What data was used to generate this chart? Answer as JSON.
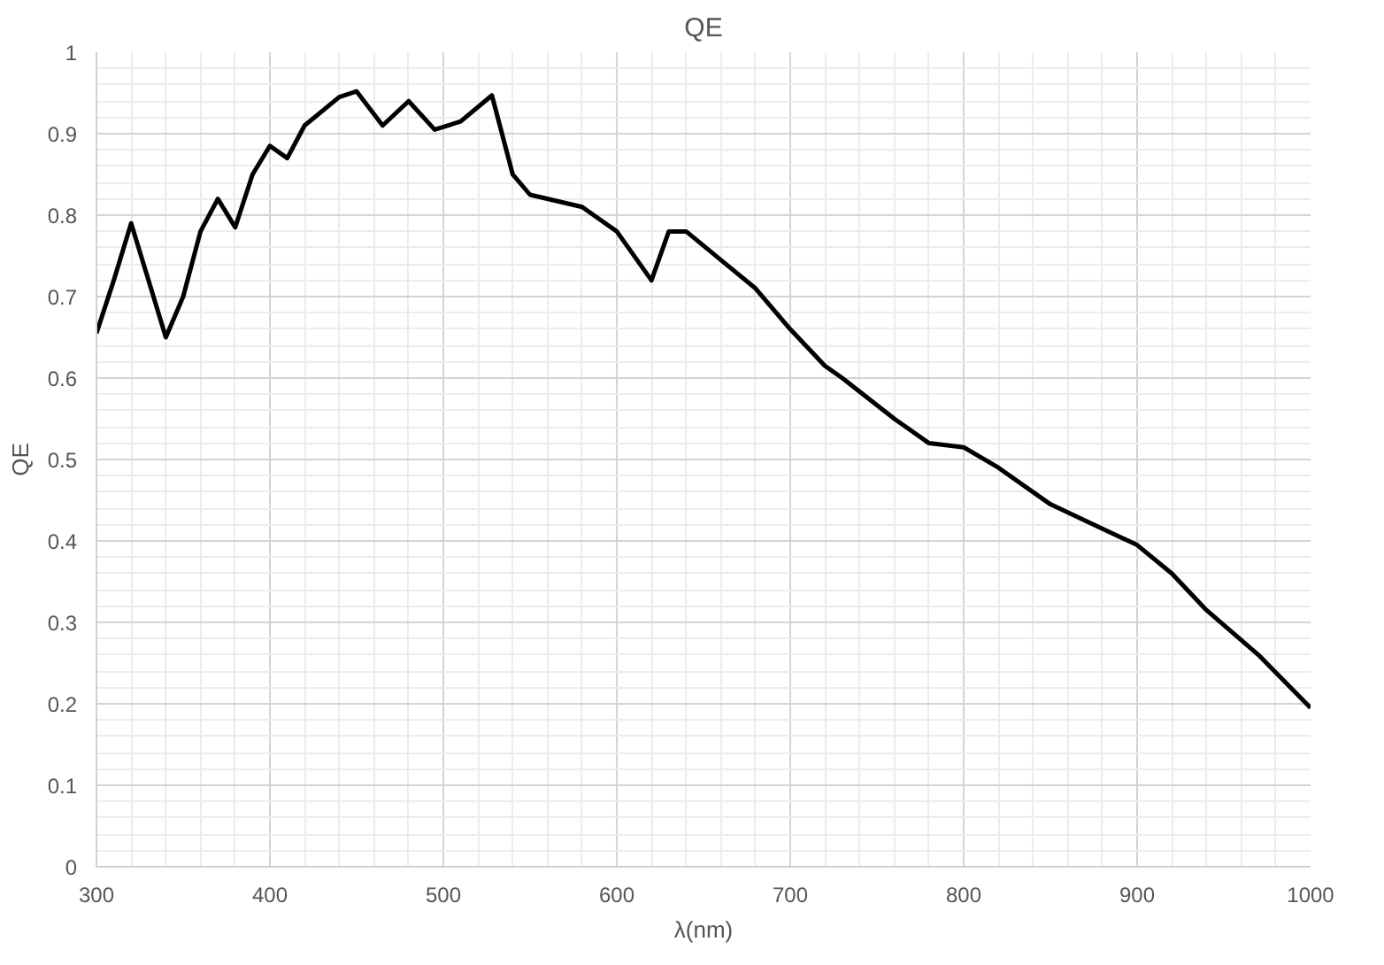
{
  "chart_data": {
    "type": "line",
    "title": "QE",
    "xlabel": "λ(nm)",
    "ylabel": "QE",
    "x": [
      300,
      310,
      320,
      330,
      340,
      350,
      360,
      370,
      380,
      390,
      400,
      410,
      420,
      440,
      450,
      465,
      480,
      495,
      510,
      528,
      540,
      550,
      580,
      600,
      620,
      630,
      640,
      660,
      680,
      700,
      720,
      730,
      760,
      780,
      800,
      820,
      850,
      880,
      900,
      920,
      940,
      970,
      1000
    ],
    "series": [
      {
        "color": "#000000",
        "values": [
          0.655,
          0.72,
          0.79,
          0.72,
          0.65,
          0.7,
          0.78,
          0.82,
          0.785,
          0.85,
          0.885,
          0.87,
          0.91,
          0.945,
          0.952,
          0.91,
          0.94,
          0.905,
          0.915,
          0.947,
          0.85,
          0.825,
          0.81,
          0.78,
          0.72,
          0.78,
          0.78,
          0.745,
          0.71,
          0.66,
          0.615,
          0.6,
          0.55,
          0.52,
          0.515,
          0.49,
          0.445,
          0.415,
          0.395,
          0.36,
          0.315,
          0.26,
          0.195
        ]
      }
    ],
    "xlim": [
      300,
      1000
    ],
    "ylim": [
      0,
      1
    ],
    "xticks": [
      300,
      400,
      500,
      600,
      700,
      800,
      900,
      1000
    ],
    "yticks": [
      0,
      0.1,
      0.2,
      0.3,
      0.4,
      0.5,
      0.6,
      0.7,
      0.8,
      0.9,
      1
    ],
    "grid": true,
    "marker": "none",
    "line_style": "solid"
  }
}
